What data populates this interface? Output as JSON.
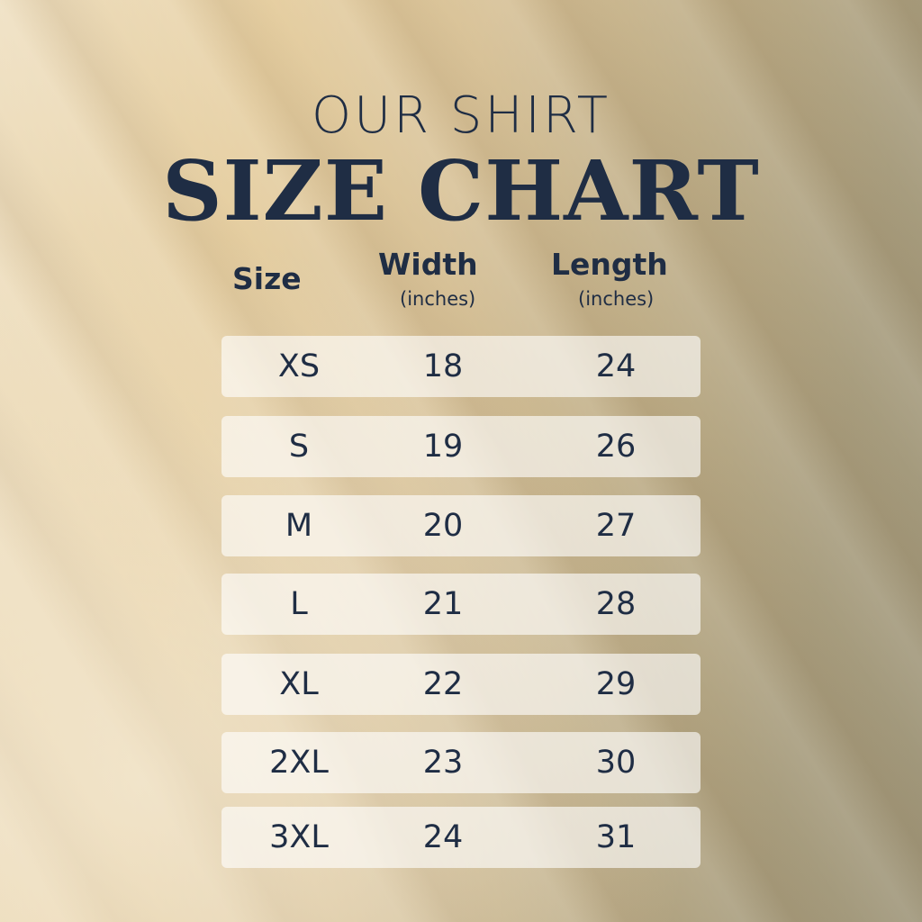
{
  "title_line1": "OUR SHIRT",
  "title_line2": "SIZE CHART",
  "headers": {
    "size": "Size",
    "width": "Width",
    "width_unit": "(inches)",
    "length": "Length",
    "length_unit": "(inches)"
  },
  "rows": [
    {
      "size": "XS",
      "width": "18",
      "length": "24"
    },
    {
      "size": "S",
      "width": "19",
      "length": "26"
    },
    {
      "size": "M",
      "width": "20",
      "length": "27"
    },
    {
      "size": "L",
      "width": "21",
      "length": "28"
    },
    {
      "size": "XL",
      "width": "22",
      "length": "29"
    },
    {
      "size": "2XL",
      "width": "23",
      "length": "30"
    },
    {
      "size": "3XL",
      "width": "24",
      "length": "31"
    }
  ],
  "colors": {
    "text": "#1f2d44",
    "row_bg": "#f3ede2"
  }
}
